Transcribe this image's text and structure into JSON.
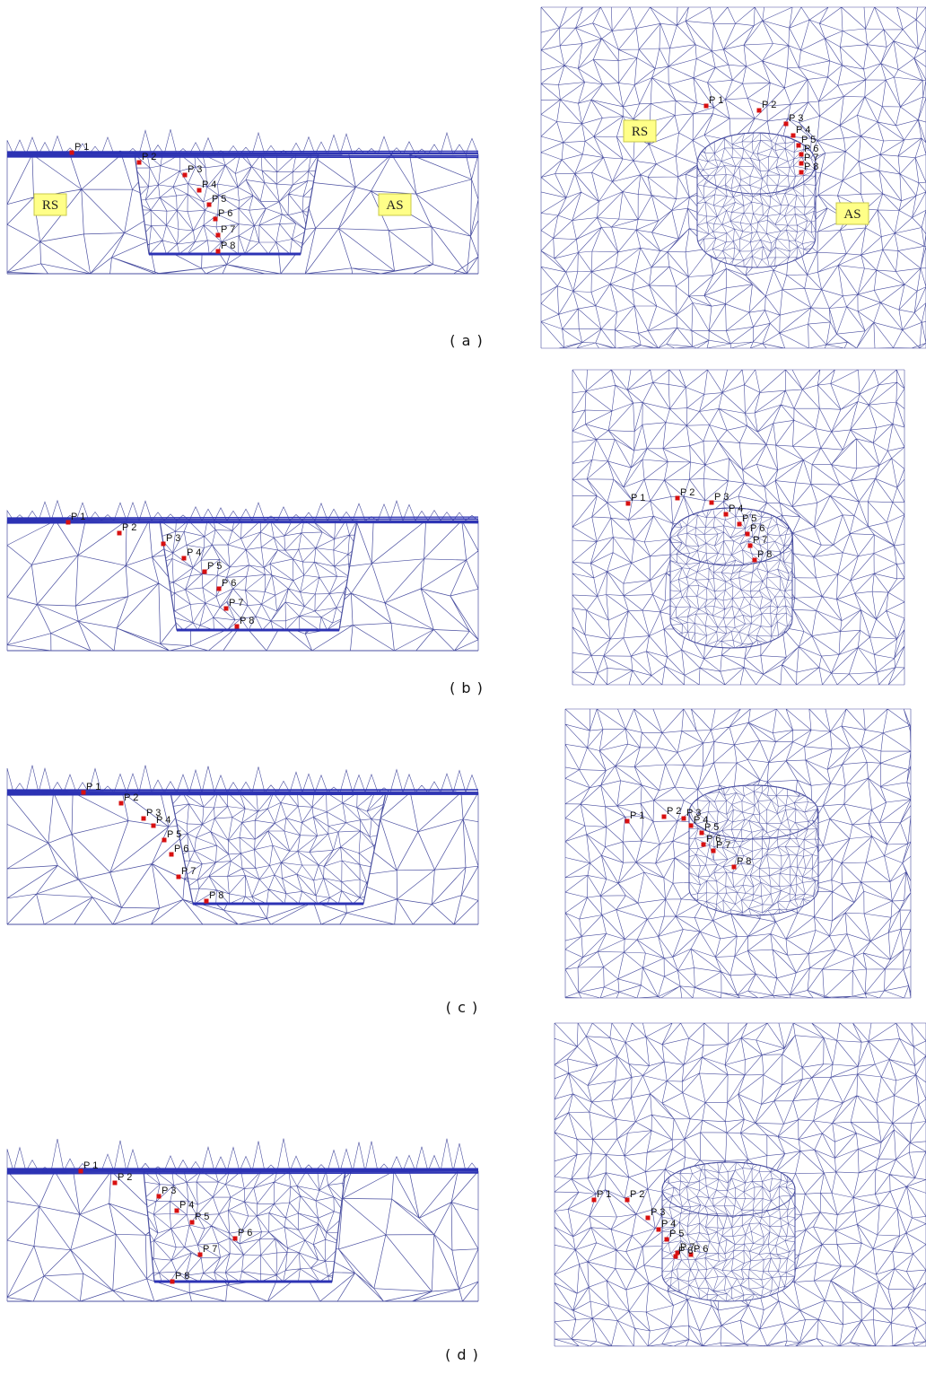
{
  "panels": [
    {
      "caption": "( a )",
      "side_view": {
        "region_labels": [
          "RS",
          "AS"
        ],
        "points": [
          "P 1",
          "P 2",
          "P 3",
          "P 4",
          "P 5",
          "P 6",
          "P 7",
          "P 8"
        ]
      },
      "top_view": {
        "region_labels": [
          "RS",
          "AS"
        ],
        "points": [
          "P 1",
          "P 2",
          "P 3",
          "P 4",
          "P 5",
          "P 6",
          "P 7",
          "P 8"
        ]
      }
    },
    {
      "caption": "( b )",
      "side_view": {
        "points": [
          "P 1",
          "P 2",
          "P 3",
          "P 4",
          "P 5",
          "P 6",
          "P 7",
          "P 8"
        ]
      },
      "top_view": {
        "points": [
          "P 1",
          "P 2",
          "P 3",
          "P 4",
          "P 5",
          "P 6",
          "P 7",
          "P 8"
        ]
      }
    },
    {
      "caption": "( c )",
      "side_view": {
        "points": [
          "P 1",
          "P 2",
          "P 3",
          "P 4",
          "P 5",
          "P 6",
          "P 7",
          "P 8"
        ]
      },
      "top_view": {
        "points": [
          "P 1",
          "P 2",
          "P 3",
          "P 4",
          "P 5",
          "P 6",
          "P 7",
          "P 8"
        ]
      }
    },
    {
      "caption": "( d )",
      "side_view": {
        "points": [
          "P 1",
          "P 2",
          "P 3",
          "P 4",
          "P 5",
          "P 6",
          "P 7",
          "P 8"
        ]
      },
      "top_view": {
        "points": [
          "P 1",
          "P 2",
          "P 3",
          "P 4",
          "P 5",
          "P 6",
          "P 7",
          "P 8"
        ]
      }
    }
  ]
}
